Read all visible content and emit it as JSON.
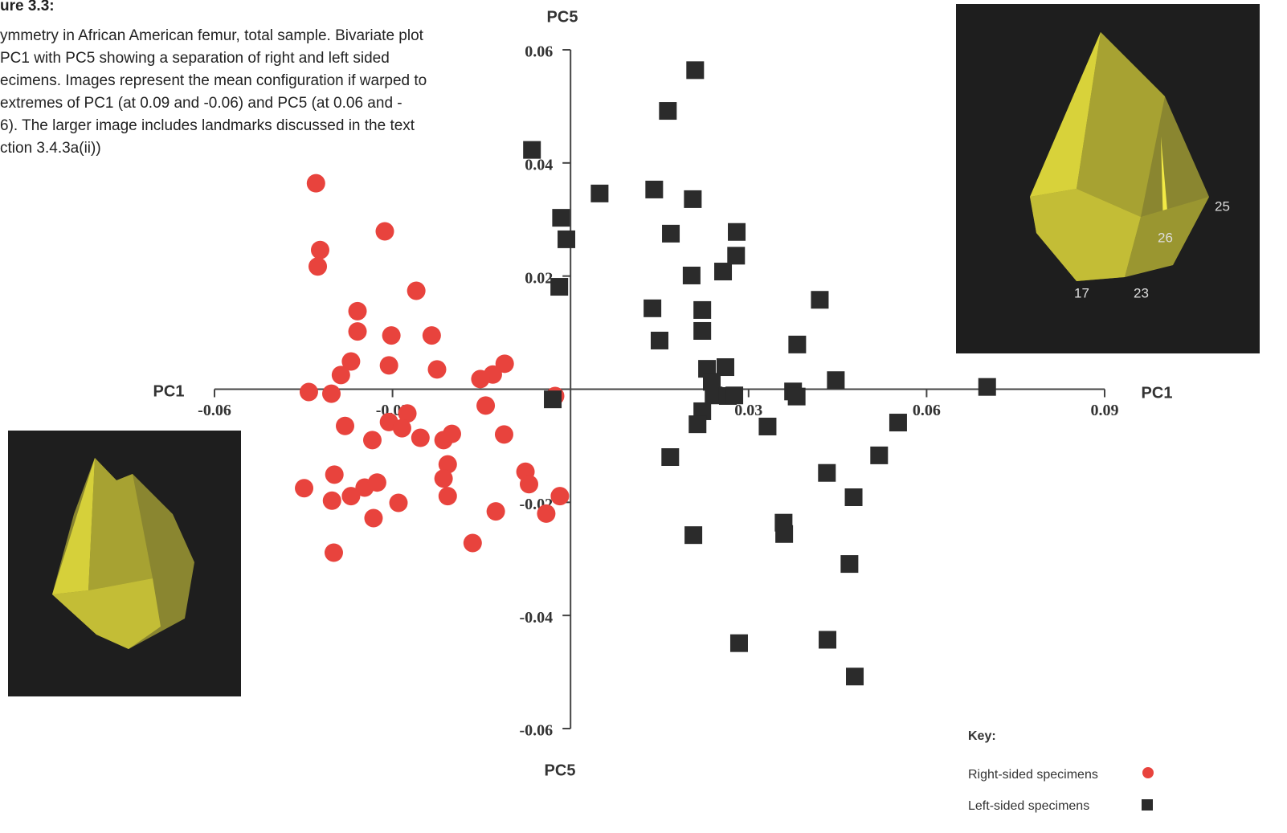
{
  "caption_lines": [
    "ure 3.3:",
    "ymmetry in African American femur, total sample. Bivariate plot",
    "PC1 with PC5 showing a separation of right and left sided",
    "ecimens. Images represent the mean configuration if warped to",
    "extremes of PC1 (at 0.09 and -0.06) and PC5 (at 0.06 and -",
    "6). The larger image includes landmarks discussed in the text",
    "ction 3.4.3a(ii))"
  ],
  "landmarks": [
    "25",
    "26",
    "17",
    "23"
  ],
  "chart_data": {
    "type": "scatter",
    "x_label": "PC1",
    "y_label": "PC5",
    "legend_title": "Key:",
    "xlim": [
      -0.06,
      0.09
    ],
    "ylim": [
      -0.06,
      0.06
    ],
    "xticks": [
      -0.06,
      -0.03,
      0.03,
      0.06,
      0.09
    ],
    "yticks": [
      0.06,
      0.04,
      0.02,
      -0.02,
      -0.04,
      -0.06
    ],
    "series": [
      {
        "name": "Right-sided specimens",
        "color": "#e8433d",
        "marker": "circle",
        "x": [
          -0.0429,
          -0.0422,
          -0.0426,
          -0.0313,
          -0.026,
          -0.0359,
          -0.0359,
          -0.0302,
          -0.0234,
          -0.037,
          -0.0306,
          -0.0387,
          -0.0225,
          -0.0111,
          -0.0131,
          -0.0152,
          -0.0441,
          -0.0403,
          -0.0143,
          -0.0026,
          -0.038,
          -0.0306,
          -0.0275,
          -0.0284,
          -0.0334,
          -0.0253,
          -0.0214,
          -0.02,
          -0.0112,
          -0.0207,
          -0.0214,
          -0.0398,
          -0.0449,
          -0.037,
          -0.0347,
          -0.0326,
          -0.0402,
          -0.029,
          -0.0207,
          -0.0076,
          -0.007,
          -0.0126,
          -0.0018,
          -0.0041,
          -0.0332,
          -0.0165,
          -0.0399
        ],
        "values": [
          0.0364,
          0.0246,
          0.0217,
          0.0279,
          0.0174,
          0.0138,
          0.0102,
          0.0095,
          0.0095,
          0.0049,
          0.0042,
          0.0025,
          0.0035,
          0.0045,
          0.0026,
          0.0018,
          -0.0005,
          -0.0008,
          -0.0029,
          -0.0012,
          -0.0065,
          -0.0058,
          -0.0043,
          -0.0069,
          -0.009,
          -0.0086,
          -0.009,
          -0.0079,
          -0.008,
          -0.0133,
          -0.0158,
          -0.0151,
          -0.0175,
          -0.0189,
          -0.0174,
          -0.0165,
          -0.0197,
          -0.0201,
          -0.0189,
          -0.0146,
          -0.0168,
          -0.0216,
          -0.0189,
          -0.022,
          -0.0228,
          -0.0272,
          -0.0289
        ]
      },
      {
        "name": "Left-sided specimens",
        "color": "#2b2b2b",
        "marker": "square",
        "x": [
          0.021,
          0.0164,
          -0.0065,
          0.0049,
          0.0141,
          0.0206,
          -0.0016,
          -0.0007,
          0.0169,
          0.028,
          0.0279,
          0.0257,
          0.0204,
          -0.0019,
          0.0138,
          0.0222,
          0.042,
          0.0222,
          0.015,
          0.0382,
          0.023,
          0.0261,
          0.0238,
          0.0447,
          0.0702,
          -0.003,
          0.0241,
          0.0265,
          0.0276,
          0.0375,
          0.0381,
          0.0222,
          0.0214,
          0.0332,
          0.0552,
          0.0168,
          0.052,
          0.0432,
          0.0477,
          0.0359,
          0.036,
          0.0207,
          0.047,
          0.0284,
          0.0433,
          0.0479
        ],
        "values": [
          0.0564,
          0.0492,
          0.0423,
          0.0346,
          0.0353,
          0.0336,
          0.0303,
          0.0265,
          0.0275,
          0.0278,
          0.0236,
          0.0208,
          0.0201,
          0.0181,
          0.0143,
          0.014,
          0.0158,
          0.0103,
          0.0086,
          0.0079,
          0.0036,
          0.0039,
          0.0013,
          0.0016,
          0.0004,
          -0.0018,
          -0.0011,
          -0.0012,
          -0.0011,
          -0.0004,
          -0.0013,
          -0.0039,
          -0.0062,
          -0.0066,
          -0.0059,
          -0.012,
          -0.0117,
          -0.0148,
          -0.0191,
          -0.0236,
          -0.0256,
          -0.0258,
          -0.0309,
          -0.0449,
          -0.0443,
          -0.0508
        ]
      }
    ]
  }
}
